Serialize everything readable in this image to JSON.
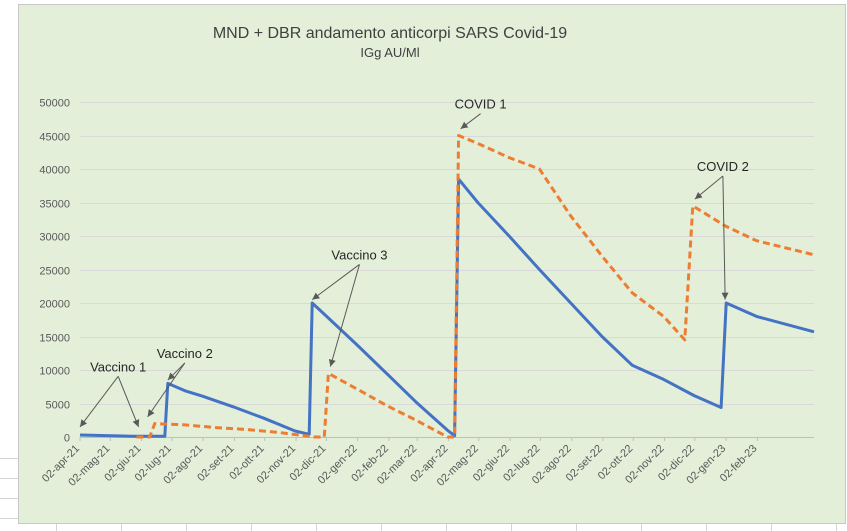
{
  "colors": {
    "background": "#e3efd9",
    "series1": "#4472c4",
    "series2": "#ed7d31",
    "grid": "#d9d9d9",
    "axis_text": "#595959",
    "title_text": "#404040",
    "annotation_line": "#595959"
  },
  "chart_data": {
    "type": "line",
    "title": "MND + DBR andamento anticorpi SARS Covid-19",
    "subtitle": "IGg AU/Ml",
    "xlabel": "",
    "ylabel": "",
    "ylim": [
      0,
      50000
    ],
    "yticks": [
      0,
      5000,
      10000,
      15000,
      20000,
      25000,
      30000,
      35000,
      40000,
      45000,
      50000
    ],
    "xlim": [
      "2021-04-02",
      "2023-03-30"
    ],
    "xticks": [
      {
        "date": "2021-04-02",
        "label": "02-apr-21"
      },
      {
        "date": "2021-05-02",
        "label": "02-mag-21"
      },
      {
        "date": "2021-06-02",
        "label": "02-giu-21"
      },
      {
        "date": "2021-07-02",
        "label": "02-lug-21"
      },
      {
        "date": "2021-08-02",
        "label": "02-ago-21"
      },
      {
        "date": "2021-09-02",
        "label": "02-set-21"
      },
      {
        "date": "2021-10-02",
        "label": "02-ott-21"
      },
      {
        "date": "2021-11-02",
        "label": "02-nov-21"
      },
      {
        "date": "2021-12-02",
        "label": "02-dic-21"
      },
      {
        "date": "2022-01-02",
        "label": "02-gen-22"
      },
      {
        "date": "2022-02-02",
        "label": "02-feb-22"
      },
      {
        "date": "2022-03-02",
        "label": "02-mar-22"
      },
      {
        "date": "2022-04-02",
        "label": "02-apr-22"
      },
      {
        "date": "2022-05-02",
        "label": "02-mag-22"
      },
      {
        "date": "2022-06-02",
        "label": "02-giu-22"
      },
      {
        "date": "2022-07-02",
        "label": "02-lug-22"
      },
      {
        "date": "2022-08-02",
        "label": "02-ago-22"
      },
      {
        "date": "2022-09-02",
        "label": "02-set-22"
      },
      {
        "date": "2022-10-02",
        "label": "02-ott-22"
      },
      {
        "date": "2022-11-02",
        "label": "02-nov-22"
      },
      {
        "date": "2022-12-02",
        "label": "02-dic-22"
      },
      {
        "date": "2023-01-02",
        "label": "02-gen-23"
      },
      {
        "date": "2023-02-02",
        "label": "02-feb-23"
      }
    ],
    "grid": true,
    "legend": "none",
    "series": [
      {
        "style": "solid",
        "color": "#4472c4",
        "points": [
          [
            "2021-04-02",
            300
          ],
          [
            "2021-05-25",
            100
          ],
          [
            "2021-06-25",
            100
          ],
          [
            "2021-06-28",
            8000
          ],
          [
            "2021-07-15",
            6900
          ],
          [
            "2021-08-01",
            6100
          ],
          [
            "2021-09-01",
            4500
          ],
          [
            "2021-10-01",
            2800
          ],
          [
            "2021-11-01",
            900
          ],
          [
            "2021-11-15",
            400
          ],
          [
            "2021-11-18",
            20000
          ],
          [
            "2021-12-01",
            18200
          ],
          [
            "2022-01-01",
            13800
          ],
          [
            "2022-02-01",
            9300
          ],
          [
            "2022-03-01",
            5200
          ],
          [
            "2022-04-01",
            1000
          ],
          [
            "2022-04-08",
            200
          ],
          [
            "2022-04-12",
            38500
          ],
          [
            "2022-05-01",
            35000
          ],
          [
            "2022-06-01",
            30000
          ],
          [
            "2022-07-01",
            25000
          ],
          [
            "2022-08-01",
            20000
          ],
          [
            "2022-09-01",
            15000
          ],
          [
            "2022-10-01",
            10700
          ],
          [
            "2022-11-01",
            8600
          ],
          [
            "2022-12-01",
            6200
          ],
          [
            "2022-12-28",
            4400
          ],
          [
            "2023-01-02",
            20000
          ],
          [
            "2023-02-01",
            18000
          ],
          [
            "2023-03-30",
            15700
          ]
        ]
      },
      {
        "style": "dashed",
        "color": "#ed7d31",
        "points": [
          [
            "2021-05-28",
            0
          ],
          [
            "2021-06-10",
            0
          ],
          [
            "2021-06-15",
            2000
          ],
          [
            "2021-07-15",
            1800
          ],
          [
            "2021-08-15",
            1400
          ],
          [
            "2021-09-15",
            1100
          ],
          [
            "2021-10-15",
            700
          ],
          [
            "2021-11-20",
            0
          ],
          [
            "2021-11-30",
            0
          ],
          [
            "2021-12-04",
            9500
          ],
          [
            "2022-01-01",
            7200
          ],
          [
            "2022-02-01",
            4600
          ],
          [
            "2022-03-01",
            2500
          ],
          [
            "2022-04-01",
            0
          ],
          [
            "2022-04-08",
            0
          ],
          [
            "2022-04-12",
            45000
          ],
          [
            "2022-05-01",
            43800
          ],
          [
            "2022-06-01",
            41700
          ],
          [
            "2022-07-01",
            40000
          ],
          [
            "2022-08-01",
            33000
          ],
          [
            "2022-09-01",
            27000
          ],
          [
            "2022-10-01",
            21500
          ],
          [
            "2022-11-01",
            18000
          ],
          [
            "2022-11-22",
            14500
          ],
          [
            "2022-11-30",
            34500
          ],
          [
            "2023-01-01",
            31500
          ],
          [
            "2023-02-01",
            29300
          ],
          [
            "2023-03-30",
            27200
          ]
        ]
      }
    ],
    "annotations": [
      {
        "text": "Vaccino 1",
        "label_date": "2021-04-12",
        "label_value": 9800,
        "arrows": [
          [
            "2021-04-02",
            1500
          ],
          [
            "2021-05-30",
            1500
          ]
        ]
      },
      {
        "text": "Vaccino 2",
        "label_date": "2021-06-17",
        "label_value": 11800,
        "arrows": [
          [
            "2021-06-08",
            3000
          ],
          [
            "2021-06-28",
            8500
          ]
        ]
      },
      {
        "text": "Vaccino 3",
        "label_date": "2021-12-07",
        "label_value": 26500,
        "arrows": [
          [
            "2021-11-18",
            20500
          ],
          [
            "2021-12-06",
            10500
          ]
        ]
      },
      {
        "text": "COVID 1",
        "label_date": "2022-04-08",
        "label_value": 49000,
        "arrows": [
          [
            "2022-04-14",
            46000
          ]
        ]
      },
      {
        "text": "COVID 2",
        "label_date": "2022-12-04",
        "label_value": 39700,
        "arrows": [
          [
            "2022-12-02",
            35500
          ],
          [
            "2023-01-01",
            20500
          ]
        ]
      }
    ]
  }
}
